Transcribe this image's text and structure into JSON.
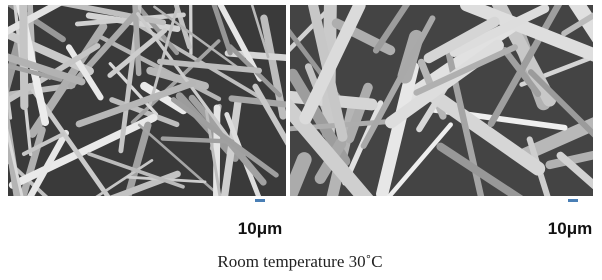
{
  "images": [
    {
      "scale_label": "10μm"
    },
    {
      "scale_label": "10μm"
    }
  ],
  "caption": "Room temperature 30˚C"
}
